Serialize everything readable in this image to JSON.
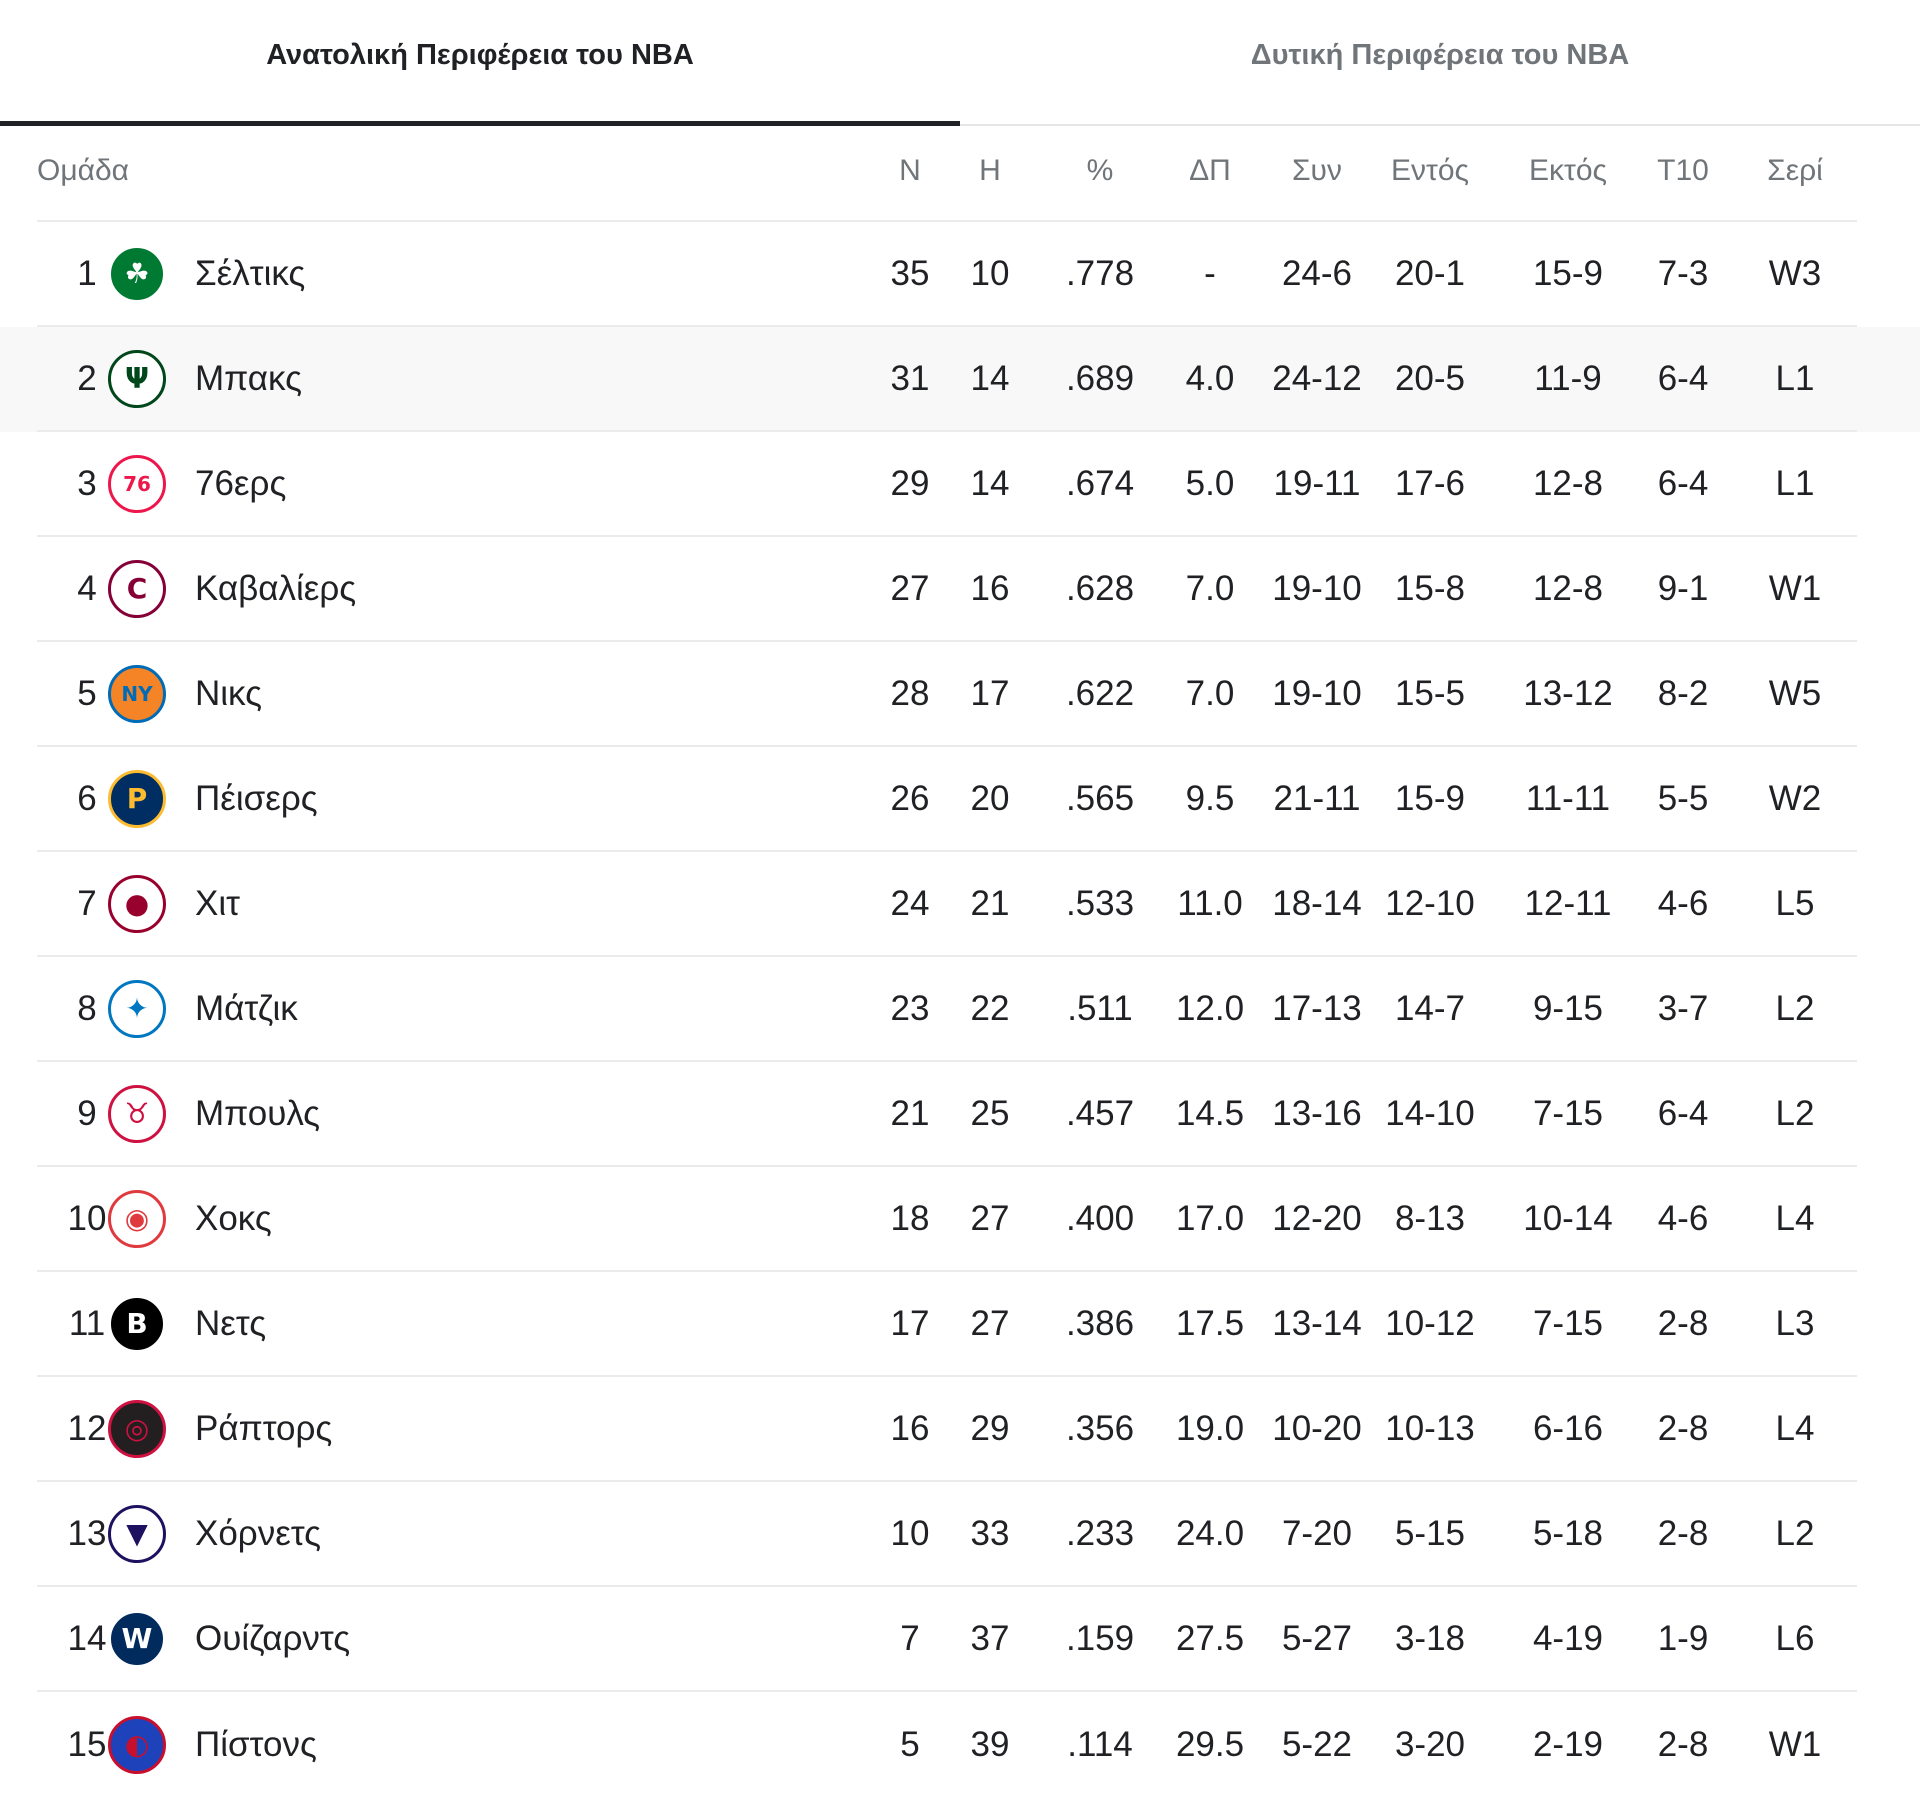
{
  "tabs": [
    {
      "label": "Ανατολική Περιφέρεια του NBA",
      "active": true
    },
    {
      "label": "Δυτική Περιφέρεια του NBA",
      "active": false
    }
  ],
  "headers": {
    "team": "Ομάδα",
    "w": "Ν",
    "l": "Η",
    "pct": "%",
    "gb": "ΔΠ",
    "conf": "Συν",
    "home": "Εντός",
    "away": "Εκτός",
    "l10": "Τ10",
    "streak": "Σερί"
  },
  "colors": {
    "active_tab_indicator": "#202124",
    "inactive_tab_text": "#70757a",
    "highlight_row": "#f8f8f8"
  },
  "rows": [
    {
      "rank": "1",
      "team": "Σέλτικς",
      "logo": "celtics-logo-icon",
      "logo_text": "☘",
      "logo_bg": "#007a33",
      "logo_fg": "#ffffff",
      "w": "35",
      "l": "10",
      "pct": ".778",
      "gb": "-",
      "conf": "24-6",
      "home": "20-1",
      "away": "15-9",
      "l10": "7-3",
      "streak": "W3"
    },
    {
      "rank": "2",
      "team": "Μπακς",
      "logo": "bucks-logo-icon",
      "logo_text": "Ψ",
      "logo_bg": "#ffffff",
      "logo_fg": "#00471b",
      "w": "31",
      "l": "14",
      "pct": ".689",
      "gb": "4.0",
      "conf": "24-12",
      "home": "20-5",
      "away": "11-9",
      "l10": "6-4",
      "streak": "L1"
    },
    {
      "rank": "3",
      "team": "76ερς",
      "logo": "sixers-logo-icon",
      "logo_text": "76",
      "logo_bg": "#ffffff",
      "logo_fg": "#ed174c",
      "w": "29",
      "l": "14",
      "pct": ".674",
      "gb": "5.0",
      "conf": "19-11",
      "home": "17-6",
      "away": "12-8",
      "l10": "6-4",
      "streak": "L1"
    },
    {
      "rank": "4",
      "team": "Καβαλίερς",
      "logo": "cavaliers-logo-icon",
      "logo_text": "C",
      "logo_bg": "#ffffff",
      "logo_fg": "#860038",
      "w": "27",
      "l": "16",
      "pct": ".628",
      "gb": "7.0",
      "conf": "19-10",
      "home": "15-8",
      "away": "12-8",
      "l10": "9-1",
      "streak": "W1"
    },
    {
      "rank": "5",
      "team": "Νικς",
      "logo": "knicks-logo-icon",
      "logo_text": "NY",
      "logo_bg": "#f58426",
      "logo_fg": "#006bb6",
      "w": "28",
      "l": "17",
      "pct": ".622",
      "gb": "7.0",
      "conf": "19-10",
      "home": "15-5",
      "away": "13-12",
      "l10": "8-2",
      "streak": "W5"
    },
    {
      "rank": "6",
      "team": "Πέισερς",
      "logo": "pacers-logo-icon",
      "logo_text": "P",
      "logo_bg": "#002d62",
      "logo_fg": "#fdbb30",
      "w": "26",
      "l": "20",
      "pct": ".565",
      "gb": "9.5",
      "conf": "21-11",
      "home": "15-9",
      "away": "11-11",
      "l10": "5-5",
      "streak": "W2"
    },
    {
      "rank": "7",
      "team": "Χιτ",
      "logo": "heat-logo-icon",
      "logo_text": "●",
      "logo_bg": "#ffffff",
      "logo_fg": "#98002e",
      "w": "24",
      "l": "21",
      "pct": ".533",
      "gb": "11.0",
      "conf": "18-14",
      "home": "12-10",
      "away": "12-11",
      "l10": "4-6",
      "streak": "L5"
    },
    {
      "rank": "8",
      "team": "Μάτζικ",
      "logo": "magic-logo-icon",
      "logo_text": "✦",
      "logo_bg": "#ffffff",
      "logo_fg": "#0077c0",
      "w": "23",
      "l": "22",
      "pct": ".511",
      "gb": "12.0",
      "conf": "17-13",
      "home": "14-7",
      "away": "9-15",
      "l10": "3-7",
      "streak": "L2"
    },
    {
      "rank": "9",
      "team": "Μπουλς",
      "logo": "bulls-logo-icon",
      "logo_text": "♉",
      "logo_bg": "#ffffff",
      "logo_fg": "#ce1141",
      "w": "21",
      "l": "25",
      "pct": ".457",
      "gb": "14.5",
      "conf": "13-16",
      "home": "14-10",
      "away": "7-15",
      "l10": "6-4",
      "streak": "L2"
    },
    {
      "rank": "10",
      "team": "Χοκς",
      "logo": "hawks-logo-icon",
      "logo_text": "◉",
      "logo_bg": "#ffffff",
      "logo_fg": "#e03a3e",
      "w": "18",
      "l": "27",
      "pct": ".400",
      "gb": "17.0",
      "conf": "12-20",
      "home": "8-13",
      "away": "10-14",
      "l10": "4-6",
      "streak": "L4"
    },
    {
      "rank": "11",
      "team": "Νετς",
      "logo": "nets-logo-icon",
      "logo_text": "B",
      "logo_bg": "#000000",
      "logo_fg": "#ffffff",
      "w": "17",
      "l": "27",
      "pct": ".386",
      "gb": "17.5",
      "conf": "13-14",
      "home": "10-12",
      "away": "7-15",
      "l10": "2-8",
      "streak": "L3"
    },
    {
      "rank": "12",
      "team": "Ράπτορς",
      "logo": "raptors-logo-icon",
      "logo_text": "◎",
      "logo_bg": "#231f20",
      "logo_fg": "#ce1141",
      "w": "16",
      "l": "29",
      "pct": ".356",
      "gb": "19.0",
      "conf": "10-20",
      "home": "10-13",
      "away": "6-16",
      "l10": "2-8",
      "streak": "L4"
    },
    {
      "rank": "13",
      "team": "Χόρνετς",
      "logo": "hornets-logo-icon",
      "logo_text": "▼",
      "logo_bg": "#ffffff",
      "logo_fg": "#1d1160",
      "w": "10",
      "l": "33",
      "pct": ".233",
      "gb": "24.0",
      "conf": "7-20",
      "home": "5-15",
      "away": "5-18",
      "l10": "2-8",
      "streak": "L2"
    },
    {
      "rank": "14",
      "team": "Ουίζαρντς",
      "logo": "wizards-logo-icon",
      "logo_text": "W",
      "logo_bg": "#002b5c",
      "logo_fg": "#ffffff",
      "w": "7",
      "l": "37",
      "pct": ".159",
      "gb": "27.5",
      "conf": "5-27",
      "home": "3-18",
      "away": "4-19",
      "l10": "1-9",
      "streak": "L6"
    },
    {
      "rank": "15",
      "team": "Πίστονς",
      "logo": "pistons-logo-icon",
      "logo_text": "◐",
      "logo_bg": "#1d42ba",
      "logo_fg": "#c8102e",
      "w": "5",
      "l": "39",
      "pct": ".114",
      "gb": "29.5",
      "conf": "5-22",
      "home": "3-20",
      "away": "2-19",
      "l10": "2-8",
      "streak": "W1"
    }
  ]
}
